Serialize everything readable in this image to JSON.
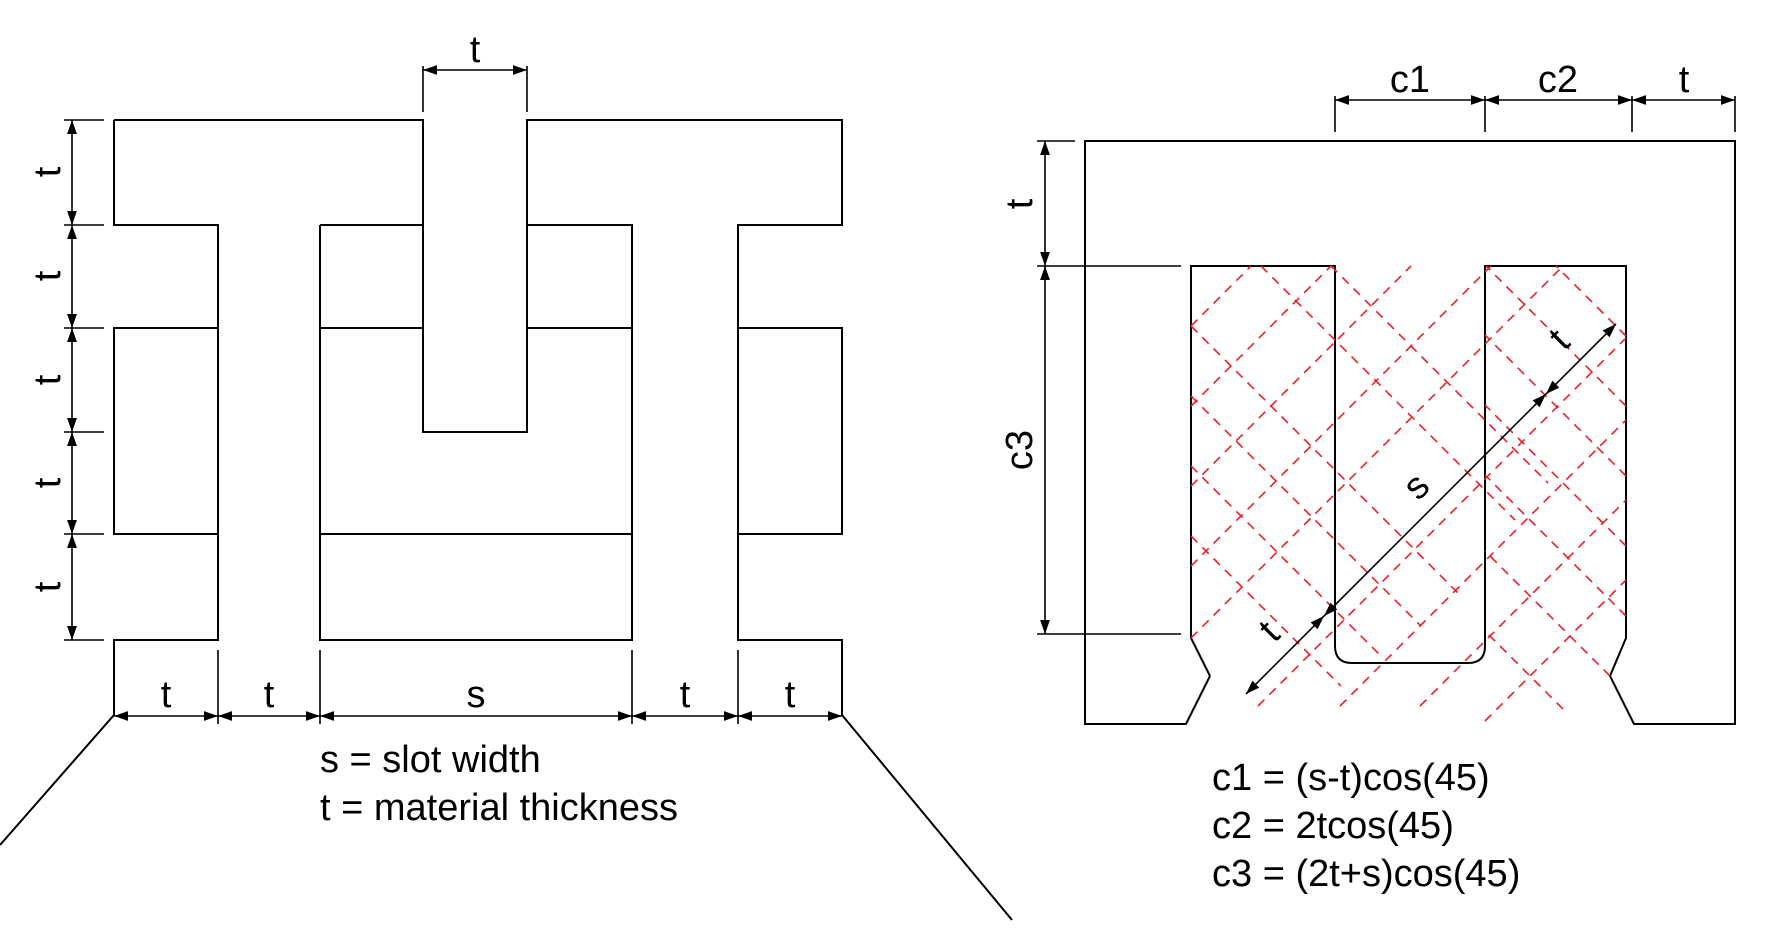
{
  "left_diagram": {
    "top_dim": "t",
    "left_dims": [
      "t",
      "t",
      "t",
      "t",
      "t"
    ],
    "bottom_dims": [
      "t",
      "t",
      "s",
      "t",
      "t"
    ],
    "legend": [
      "s = slot width",
      "t = material thickness"
    ]
  },
  "right_diagram": {
    "top_dims": [
      "c1",
      "c2",
      "t"
    ],
    "left_dims": [
      "t",
      "c3"
    ],
    "diag_dims": [
      "t",
      "s",
      "t"
    ],
    "formulas": [
      "c1 = (s-t)cos(45)",
      "c2 = 2tcos(45)",
      "c3 = (2t+s)cos(45)"
    ]
  },
  "colors": {
    "line": "#000000",
    "construction": "#e8202a"
  }
}
